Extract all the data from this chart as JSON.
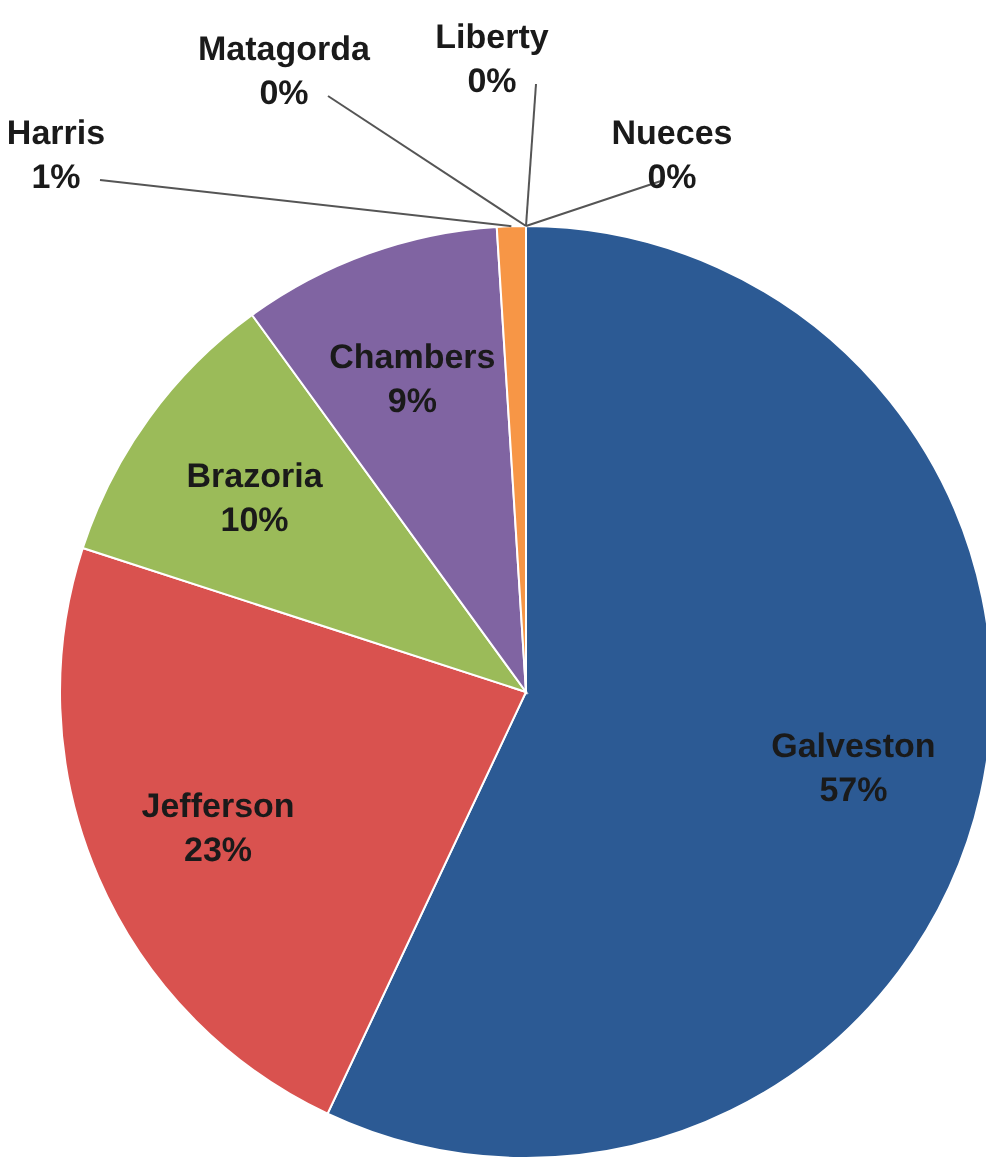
{
  "chart_data": {
    "type": "pie",
    "categories": [
      "Galveston",
      "Jefferson",
      "Brazoria",
      "Chambers",
      "Harris",
      "Matagorda",
      "Liberty",
      "Nueces"
    ],
    "values": [
      57,
      23,
      10,
      9,
      1,
      0,
      0,
      0
    ],
    "value_labels": [
      "57%",
      "23%",
      "10%",
      "9%",
      "1%",
      "0%",
      "0%",
      "0%"
    ],
    "colors": [
      "#2c5a94",
      "#d9524f",
      "#9bbb59",
      "#8064a2",
      "#f79646",
      "#4bacc6",
      "#c0504d",
      "#1f497d"
    ]
  }
}
